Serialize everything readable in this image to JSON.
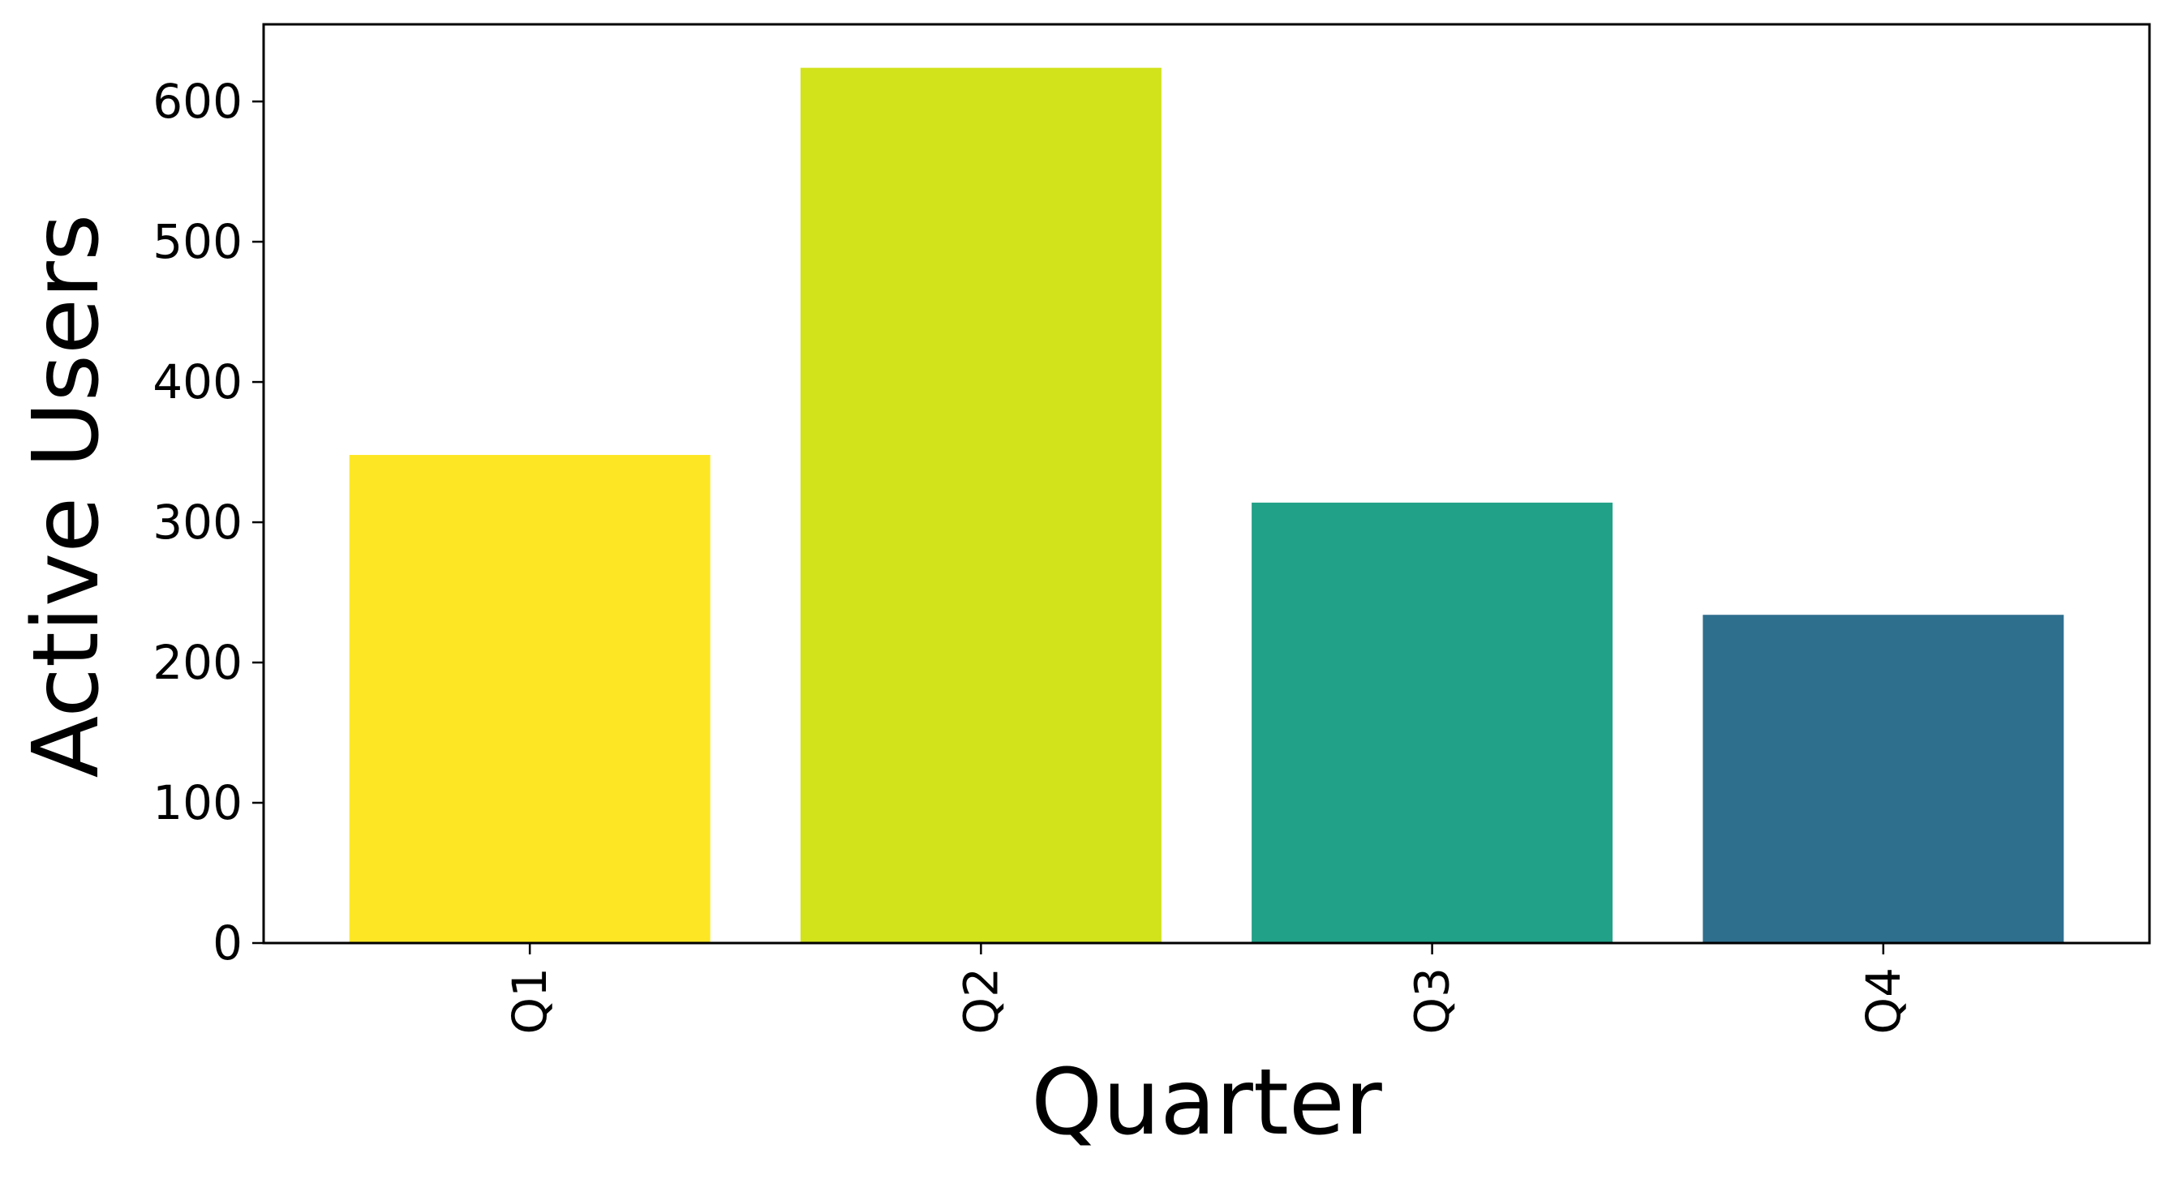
{
  "chart_data": {
    "type": "bar",
    "title": "",
    "xlabel": "Quarter",
    "ylabel": "Active Users",
    "categories": [
      "Q1",
      "Q2",
      "Q3",
      "Q4"
    ],
    "values": [
      348,
      624,
      314,
      234
    ],
    "colors": [
      "#fde725",
      "#d2e21b",
      "#21a187",
      "#2f6f8e"
    ],
    "ylim": [
      0,
      655
    ],
    "yticks": [
      0,
      100,
      200,
      300,
      400,
      500,
      600
    ],
    "ytick_labels": [
      "0",
      "100",
      "200",
      "300",
      "400",
      "500",
      "600"
    ],
    "grid": false,
    "legend": "none",
    "xtick_rotation": "vertical"
  }
}
